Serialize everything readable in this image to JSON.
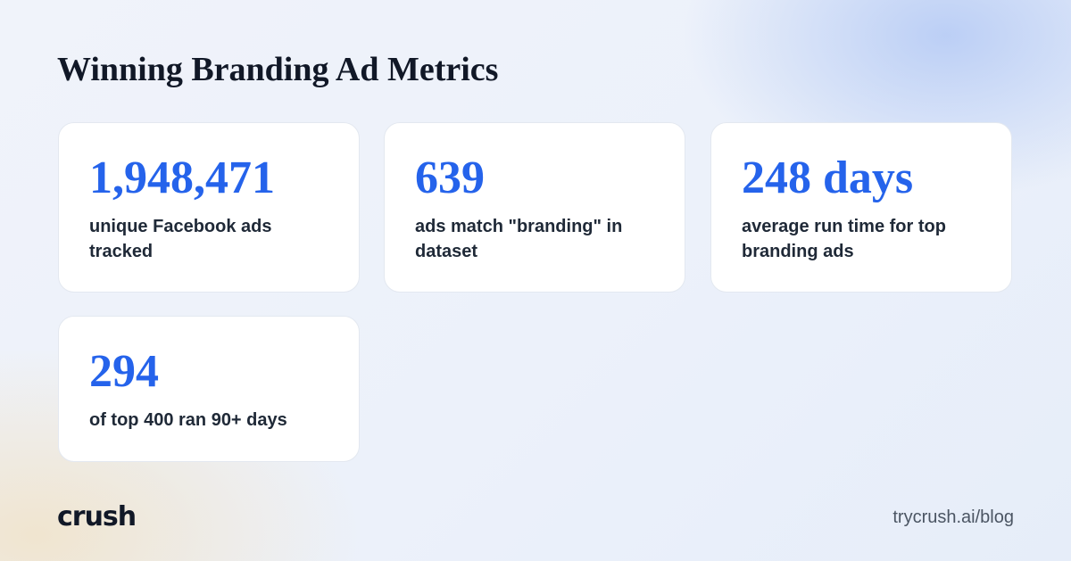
{
  "title": "Winning Branding Ad Metrics",
  "metrics": [
    {
      "value": "1,948,471",
      "label": "unique Facebook ads tracked"
    },
    {
      "value": "639",
      "label": "ads match \"branding\" in dataset"
    },
    {
      "value": "248 days",
      "label": "average run time for top branding ads"
    },
    {
      "value": "294",
      "label": "of top 400 ran 90+ days"
    }
  ],
  "footer": {
    "logo_text": "crush",
    "url": "trycrush.ai/blog"
  },
  "colors": {
    "accent": "#2563eb",
    "text_dark": "#111827",
    "card_bg": "#ffffff"
  }
}
